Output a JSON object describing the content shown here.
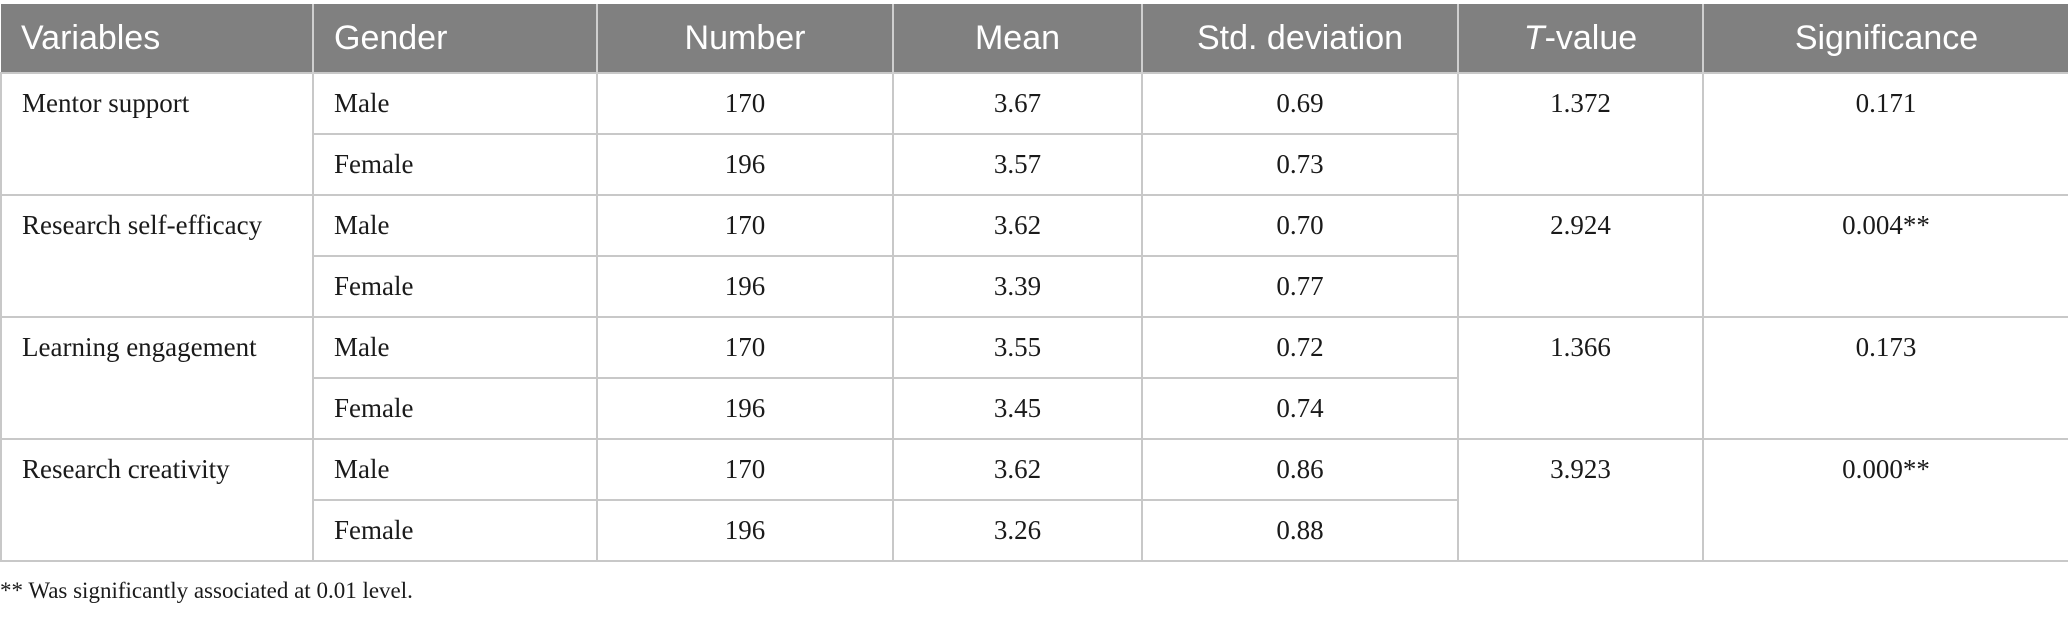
{
  "table": {
    "headers": {
      "variables": "Variables",
      "gender": "Gender",
      "number": "Number",
      "mean": "Mean",
      "std": "Std. deviation",
      "t_italic": "T",
      "t_rest": "-value",
      "significance": "Significance"
    },
    "groups": [
      {
        "variable": "Mentor support",
        "t_value": "1.372",
        "significance": "0.171",
        "rows": [
          {
            "gender": "Male",
            "number": "170",
            "mean": "3.67",
            "std": "0.69"
          },
          {
            "gender": "Female",
            "number": "196",
            "mean": "3.57",
            "std": "0.73"
          }
        ]
      },
      {
        "variable": "Research self-efficacy",
        "t_value": "2.924",
        "significance": "0.004**",
        "rows": [
          {
            "gender": "Male",
            "number": "170",
            "mean": "3.62",
            "std": "0.70"
          },
          {
            "gender": "Female",
            "number": "196",
            "mean": "3.39",
            "std": "0.77"
          }
        ]
      },
      {
        "variable": "Learning engagement",
        "t_value": "1.366",
        "significance": "0.173",
        "rows": [
          {
            "gender": "Male",
            "number": "170",
            "mean": "3.55",
            "std": "0.72"
          },
          {
            "gender": "Female",
            "number": "196",
            "mean": "3.45",
            "std": "0.74"
          }
        ]
      },
      {
        "variable": "Research creativity",
        "t_value": "3.923",
        "significance": "0.000**",
        "rows": [
          {
            "gender": "Male",
            "number": "170",
            "mean": "3.62",
            "std": "0.86"
          },
          {
            "gender": "Female",
            "number": "196",
            "mean": "3.26",
            "std": "0.88"
          }
        ]
      }
    ]
  },
  "footnote": "** Was significantly associated at 0.01 level."
}
